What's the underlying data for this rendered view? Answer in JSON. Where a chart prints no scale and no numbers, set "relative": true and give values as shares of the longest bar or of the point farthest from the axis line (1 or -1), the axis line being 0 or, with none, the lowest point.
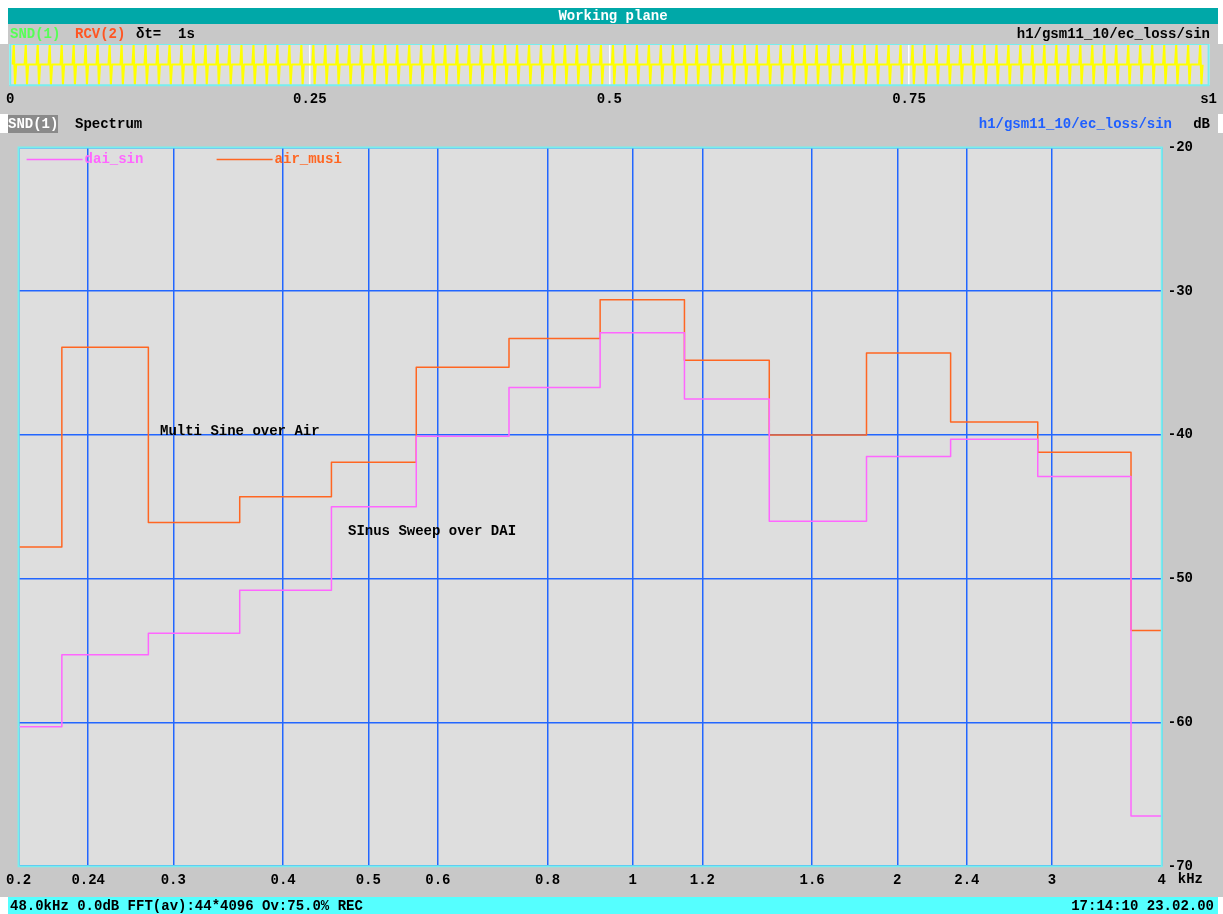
{
  "chart_data": [
    {
      "type": "line",
      "title": "Working plane",
      "relative": true,
      "x": [
        0.002,
        0.003,
        0.004,
        0.005,
        0.012,
        0.013,
        0.014,
        0.015,
        0.022,
        0.023,
        0.024,
        0.025,
        0.032,
        0.033,
        0.034,
        0.035,
        0.042,
        0.043,
        0.044,
        0.045,
        0.052,
        0.053,
        0.054,
        0.055,
        0.062,
        0.063,
        0.064,
        0.065,
        0.072,
        0.073,
        0.074,
        0.075,
        0.082,
        0.083,
        0.084,
        0.085,
        0.092,
        0.093,
        0.094,
        0.095,
        0.102,
        0.103,
        0.104,
        0.105,
        0.112,
        0.113,
        0.114,
        0.115,
        0.122,
        0.123,
        0.124,
        0.125,
        0.132,
        0.133,
        0.134,
        0.135,
        0.142,
        0.143,
        0.144,
        0.145,
        0.152,
        0.153,
        0.154,
        0.155,
        0.162,
        0.163,
        0.164,
        0.165,
        0.172,
        0.173,
        0.174,
        0.175,
        0.182,
        0.183,
        0.184,
        0.185,
        0.192,
        0.193,
        0.194,
        0.195,
        0.202,
        0.203,
        0.204,
        0.205,
        0.212,
        0.213,
        0.214,
        0.215,
        0.222,
        0.223,
        0.224,
        0.225,
        0.232,
        0.233,
        0.234,
        0.235,
        0.242,
        0.243,
        0.244,
        0.245,
        0.252,
        0.253,
        0.254,
        0.255,
        0.262,
        0.263,
        0.264,
        0.265,
        0.272,
        0.273,
        0.274,
        0.275,
        0.282,
        0.283,
        0.284,
        0.285,
        0.292,
        0.293,
        0.294,
        0.295,
        0.302,
        0.303,
        0.304,
        0.305,
        0.312,
        0.313,
        0.314,
        0.315,
        0.322,
        0.323,
        0.324,
        0.325,
        0.332,
        0.333,
        0.334,
        0.335,
        0.342,
        0.343,
        0.344,
        0.345,
        0.352,
        0.353,
        0.354,
        0.355,
        0.362,
        0.363,
        0.364,
        0.365,
        0.372,
        0.373,
        0.374,
        0.375,
        0.382,
        0.383,
        0.384,
        0.385,
        0.392,
        0.393,
        0.394,
        0.395,
        0.402,
        0.403,
        0.404,
        0.405,
        0.412,
        0.413,
        0.414,
        0.415,
        0.422,
        0.423,
        0.424,
        0.425,
        0.432,
        0.433,
        0.434,
        0.435,
        0.442,
        0.443,
        0.444,
        0.445,
        0.452,
        0.453,
        0.454,
        0.455,
        0.462,
        0.463,
        0.464,
        0.465,
        0.472,
        0.473,
        0.474,
        0.475,
        0.482,
        0.483,
        0.484,
        0.485,
        0.492,
        0.493,
        0.494,
        0.495,
        0.502,
        0.503,
        0.504,
        0.505,
        0.512,
        0.513,
        0.514,
        0.515,
        0.522,
        0.523,
        0.524,
        0.525,
        0.532,
        0.533,
        0.534,
        0.535,
        0.542,
        0.543,
        0.544,
        0.545,
        0.552,
        0.553,
        0.554,
        0.555,
        0.562,
        0.563,
        0.564,
        0.565,
        0.572,
        0.573,
        0.574,
        0.575,
        0.582,
        0.583,
        0.584,
        0.585,
        0.592,
        0.593,
        0.594,
        0.595,
        0.602,
        0.603,
        0.604,
        0.605,
        0.612,
        0.613,
        0.614,
        0.615,
        0.622,
        0.623,
        0.624,
        0.625,
        0.632,
        0.633,
        0.634,
        0.635,
        0.642,
        0.643,
        0.644,
        0.645,
        0.652,
        0.653,
        0.654,
        0.655,
        0.662,
        0.663,
        0.664,
        0.665,
        0.672,
        0.673,
        0.674,
        0.675,
        0.682,
        0.683,
        0.684,
        0.685,
        0.692,
        0.693,
        0.694,
        0.695,
        0.702,
        0.703,
        0.704,
        0.705,
        0.712,
        0.713,
        0.714,
        0.715,
        0.722,
        0.723,
        0.724,
        0.725,
        0.732,
        0.733,
        0.734,
        0.735,
        0.742,
        0.743,
        0.744,
        0.745,
        0.752,
        0.753,
        0.754,
        0.755,
        0.762,
        0.763,
        0.764,
        0.765,
        0.772,
        0.773,
        0.774,
        0.775,
        0.782,
        0.783,
        0.784,
        0.785,
        0.792,
        0.793,
        0.794,
        0.795,
        0.802,
        0.803,
        0.804,
        0.805,
        0.812,
        0.813,
        0.814,
        0.815,
        0.822,
        0.823,
        0.824,
        0.825,
        0.832,
        0.833,
        0.834,
        0.835,
        0.842,
        0.843,
        0.844,
        0.845,
        0.852,
        0.853,
        0.854,
        0.855,
        0.862,
        0.863,
        0.864,
        0.865,
        0.872,
        0.873,
        0.874,
        0.875,
        0.882,
        0.883,
        0.884,
        0.885,
        0.892,
        0.893,
        0.894,
        0.895,
        0.902,
        0.903,
        0.904,
        0.905,
        0.912,
        0.913,
        0.914,
        0.915,
        0.922,
        0.923,
        0.924,
        0.925,
        0.932,
        0.933,
        0.934,
        0.935,
        0.942,
        0.943,
        0.944,
        0.945,
        0.952,
        0.953,
        0.954,
        0.955,
        0.962,
        0.963,
        0.964,
        0.965,
        0.972,
        0.973,
        0.974,
        0.975,
        0.982,
        0.983,
        0.984,
        0.985,
        0.992,
        0.993,
        0.994,
        0.995
      ],
      "series": [
        {
          "color": "#ffff00",
          "values": [
            0.5,
            1,
            0,
            0.5,
            0.5,
            1,
            0,
            0.5,
            0.5,
            1,
            0,
            0.5,
            0.5,
            1,
            0,
            0.5,
            0.5,
            1,
            0,
            0.5,
            0.5,
            1,
            0,
            0.5,
            0.5,
            1,
            0,
            0.5,
            0.5,
            1,
            0,
            0.5,
            0.5,
            1,
            0,
            0.5,
            0.5,
            1,
            0,
            0.5,
            0.5,
            1,
            0,
            0.5,
            0.5,
            1,
            0,
            0.5,
            0.5,
            1,
            0,
            0.5,
            0.5,
            1,
            0,
            0.5,
            0.5,
            1,
            0,
            0.5,
            0.5,
            1,
            0,
            0.5,
            0.5,
            1,
            0,
            0.5,
            0.5,
            1,
            0,
            0.5,
            0.5,
            1,
            0,
            0.5,
            0.5,
            1,
            0,
            0.5,
            0.5,
            1,
            0,
            0.5,
            0.5,
            1,
            0,
            0.5,
            0.5,
            1,
            0,
            0.5,
            0.5,
            1,
            0,
            0.5,
            0.5,
            1,
            0,
            0.5,
            0.5,
            1,
            0,
            0.5,
            0.5,
            1,
            0,
            0.5,
            0.5,
            1,
            0,
            0.5,
            0.5,
            1,
            0,
            0.5,
            0.5,
            1,
            0,
            0.5,
            0.5,
            1,
            0,
            0.5,
            0.5,
            1,
            0,
            0.5,
            0.5,
            1,
            0,
            0.5,
            0.5,
            1,
            0,
            0.5,
            0.5,
            1,
            0,
            0.5,
            0.5,
            1,
            0,
            0.5,
            0.5,
            1,
            0,
            0.5,
            0.5,
            1,
            0,
            0.5,
            0.5,
            1,
            0,
            0.5,
            0.5,
            1,
            0,
            0.5,
            0.5,
            1,
            0,
            0.5,
            0.5,
            1,
            0,
            0.5,
            0.5,
            1,
            0,
            0.5,
            0.5,
            1,
            0,
            0.5,
            0.5,
            1,
            0,
            0.5,
            0.5,
            1,
            0,
            0.5,
            0.5,
            1,
            0,
            0.5,
            0.5,
            1,
            0,
            0.5,
            0.5,
            1,
            0,
            0.5,
            0.5,
            1,
            0,
            0.5,
            0.5,
            1,
            0,
            0.5,
            0.5,
            1,
            0,
            0.5,
            0.5,
            1,
            0,
            0.5,
            0.5,
            1,
            0,
            0.5,
            0.5,
            1,
            0,
            0.5,
            0.5,
            1,
            0,
            0.5,
            0.5,
            1,
            0,
            0.5,
            0.5,
            1,
            0,
            0.5,
            0.5,
            1,
            0,
            0.5,
            0.5,
            1,
            0,
            0.5,
            0.5,
            1,
            0,
            0.5,
            0.5,
            1,
            0,
            0.5,
            0.5,
            1,
            0,
            0.5,
            0.5,
            1,
            0,
            0.5,
            0.5,
            1,
            0,
            0.5,
            0.5,
            1,
            0,
            0.5,
            0.5,
            1,
            0,
            0.5,
            0.5,
            1,
            0,
            0.5,
            0.5,
            1,
            0,
            0.5,
            0.5,
            1,
            0,
            0.5,
            0.5,
            1,
            0,
            0.5,
            0.5,
            1,
            0,
            0.5,
            0.5,
            1,
            0,
            0.5,
            0.5,
            1,
            0,
            0.5,
            0.5,
            1,
            0,
            0.5,
            0.5,
            1,
            0,
            0.5,
            0.5,
            1,
            0,
            0.5,
            0.5,
            1,
            0,
            0.5,
            0.5,
            1,
            0,
            0.5,
            0.5,
            1,
            0,
            0.5,
            0.5,
            1,
            0,
            0.5,
            0.5,
            1,
            0,
            0.5,
            0.5,
            1,
            0,
            0.5,
            0.5,
            1,
            0,
            0.5,
            0.5,
            1,
            0,
            0.5,
            0.5,
            1,
            0,
            0.5,
            0.5,
            1,
            0,
            0.5,
            0.5,
            1,
            0,
            0.5,
            0.5,
            1,
            0,
            0.5,
            0.5,
            1,
            0,
            0.5,
            0.5,
            1,
            0,
            0.5,
            0.5,
            1,
            0,
            0.5,
            0.5,
            1,
            0,
            0.5,
            0.5,
            1,
            0,
            0.5,
            0.5,
            1,
            0,
            0.5,
            0.5,
            1,
            0,
            0.5,
            0.5,
            1,
            0,
            0.5,
            0.5,
            1,
            0,
            0.5,
            0.5,
            1,
            0,
            0.5,
            0.5,
            1,
            0,
            0.5
          ]
        }
      ],
      "xlim": [
        0,
        1
      ],
      "xticks": [
        0,
        0.25,
        0.5,
        0.75,
        {
          "value": 1,
          "label": "s1"
        }
      ],
      "grid": "x",
      "annotations": [
        "SND(1)",
        "RCV(2)",
        "δt=  1s",
        "h1/gsm11_10/ec_loss/sin"
      ]
    },
    {
      "type": "step",
      "title": "Spectrum",
      "xlabel": "kHz",
      "ylabel": "dB",
      "log": "x",
      "x": [
        0.2,
        0.224,
        0.281,
        0.357,
        0.454,
        0.567,
        0.723,
        0.918,
        1.145,
        1.43,
        1.845,
        2.3,
        2.89,
        3.69,
        4
      ],
      "series": [
        {
          "name": "dai_sin",
          "color": "#ff66ff",
          "values": [
            -60.3,
            -55.3,
            -53.8,
            -50.8,
            -45.0,
            -40.1,
            -36.7,
            -32.9,
            -37.5,
            -46.0,
            -41.5,
            -40.3,
            -42.9,
            -66.5,
            -66.5
          ]
        },
        {
          "name": "air_musi",
          "color": "#ff6622",
          "values": [
            -47.8,
            -33.9,
            -46.1,
            -44.3,
            -41.9,
            -35.3,
            -33.3,
            -30.6,
            -34.8,
            -40.0,
            -34.3,
            -39.1,
            -41.2,
            -53.6,
            -53.6
          ]
        }
      ],
      "xlim": [
        0.2,
        4
      ],
      "xticks": [
        0.2,
        0.24,
        0.3,
        0.4,
        0.5,
        0.6,
        0.8,
        1,
        1.2,
        1.6,
        2,
        2.4,
        3,
        4
      ],
      "ylim": [
        -70,
        -20
      ],
      "yticks": [
        -20,
        -30,
        -40,
        -50,
        -60,
        -70
      ],
      "grid": true,
      "legend": "top left",
      "annotations": [
        "SND(1)",
        "h1/gsm11_10/ec_loss/sin",
        "48.0kHz 0.0dB FFT(av):44*4096 Ov:75.0% REC",
        "17:14:10 23.02.00",
        "Multi Sine over Air",
        "SInus Sweep over DAI"
      ]
    }
  ]
}
